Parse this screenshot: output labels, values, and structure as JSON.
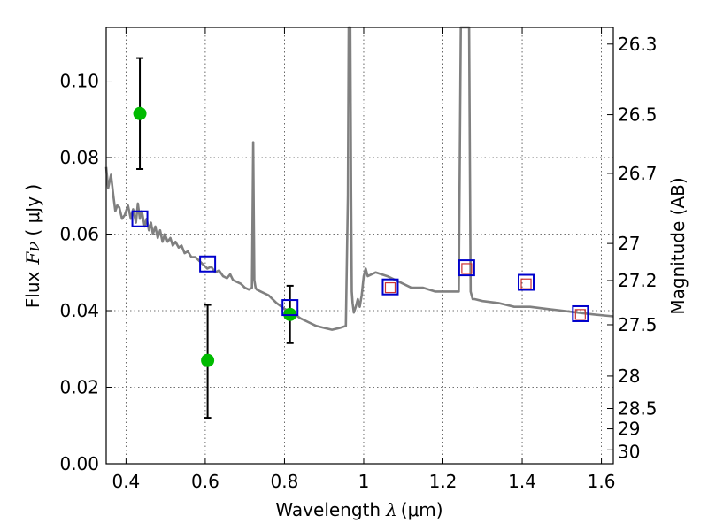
{
  "chart_data": {
    "type": "scatter",
    "title": "",
    "xlabel": {
      "text": "Wavelength",
      "symbol": "λ",
      "unit": "(μm)"
    },
    "ylabel": {
      "text": "Flux",
      "symbol": "Fν",
      "unit": "( μJy )"
    },
    "y2label": "Magnitude (AB)",
    "xlim": [
      0.35,
      1.63
    ],
    "ylim": [
      0.0,
      0.114
    ],
    "grid": true,
    "x_ticks": [
      {
        "value": 0.4,
        "label": "0.4"
      },
      {
        "value": 0.6,
        "label": "0.6"
      },
      {
        "value": 0.8,
        "label": "0.8"
      },
      {
        "value": 1.0,
        "label": "1"
      },
      {
        "value": 1.2,
        "label": "1.2"
      },
      {
        "value": 1.4,
        "label": "1.4"
      },
      {
        "value": 1.6,
        "label": "1.6"
      }
    ],
    "y_ticks": [
      {
        "value": 0.0,
        "label": "0.00"
      },
      {
        "value": 0.02,
        "label": "0.02"
      },
      {
        "value": 0.04,
        "label": "0.04"
      },
      {
        "value": 0.06,
        "label": "0.06"
      },
      {
        "value": 0.08,
        "label": "0.08"
      },
      {
        "value": 0.1,
        "label": "0.10"
      }
    ],
    "y2_ticks": [
      {
        "value": 26.3,
        "label": "26.3"
      },
      {
        "value": 26.5,
        "label": "26.5"
      },
      {
        "value": 26.7,
        "label": "26.7"
      },
      {
        "value": 27.0,
        "label": "27"
      },
      {
        "value": 27.2,
        "label": "27.2"
      },
      {
        "value": 27.5,
        "label": "27.5"
      },
      {
        "value": 28.0,
        "label": "28"
      },
      {
        "value": 28.5,
        "label": "28.5"
      },
      {
        "value": 29.0,
        "label": "29"
      },
      {
        "value": 30.0,
        "label": "30"
      }
    ],
    "colors": {
      "spectrum": "#808080",
      "observed": "#00bb00",
      "errorbar": "#000000",
      "model_box": "#0000cc",
      "model_inner": "#cc3333",
      "grid": "#444444"
    },
    "spectrum": {
      "x": [
        0.35,
        0.355,
        0.362,
        0.368,
        0.373,
        0.378,
        0.383,
        0.39,
        0.397,
        0.405,
        0.412,
        0.418,
        0.425,
        0.43,
        0.435,
        0.44,
        0.447,
        0.452,
        0.458,
        0.463,
        0.468,
        0.474,
        0.48,
        0.486,
        0.492,
        0.498,
        0.505,
        0.512,
        0.518,
        0.525,
        0.533,
        0.54,
        0.548,
        0.556,
        0.565,
        0.575,
        0.585,
        0.595,
        0.605,
        0.615,
        0.625,
        0.635,
        0.645,
        0.655,
        0.663,
        0.67,
        0.68,
        0.69,
        0.7,
        0.71,
        0.718,
        0.721,
        0.724,
        0.727,
        0.73,
        0.74,
        0.76,
        0.78,
        0.8,
        0.82,
        0.84,
        0.86,
        0.88,
        0.9,
        0.92,
        0.94,
        0.955,
        0.96,
        0.962,
        0.964,
        0.966,
        0.968,
        0.97,
        0.972,
        0.975,
        0.98,
        0.985,
        0.99,
        0.995,
        1.0,
        1.005,
        1.01,
        1.03,
        1.06,
        1.08,
        1.1,
        1.12,
        1.15,
        1.18,
        1.21,
        1.24,
        1.245,
        1.248,
        1.252,
        1.258,
        1.262,
        1.266,
        1.27,
        1.275,
        1.28,
        1.3,
        1.34,
        1.38,
        1.42,
        1.46,
        1.5,
        1.54,
        1.58,
        1.63
      ],
      "y": [
        0.0775,
        0.072,
        0.0755,
        0.07,
        0.066,
        0.0675,
        0.067,
        0.064,
        0.065,
        0.0675,
        0.064,
        0.0665,
        0.063,
        0.068,
        0.064,
        0.066,
        0.062,
        0.064,
        0.061,
        0.063,
        0.06,
        0.062,
        0.059,
        0.061,
        0.058,
        0.06,
        0.058,
        0.059,
        0.057,
        0.058,
        0.0565,
        0.057,
        0.055,
        0.0555,
        0.054,
        0.054,
        0.053,
        0.052,
        0.051,
        0.0515,
        0.05,
        0.0505,
        0.049,
        0.0485,
        0.0495,
        0.048,
        0.0475,
        0.047,
        0.046,
        0.0455,
        0.046,
        0.084,
        0.048,
        0.046,
        0.0455,
        0.045,
        0.044,
        0.042,
        0.0405,
        0.0395,
        0.038,
        0.037,
        0.036,
        0.0355,
        0.035,
        0.0355,
        0.036,
        0.07,
        0.114,
        0.114,
        0.114,
        0.072,
        0.045,
        0.042,
        0.0395,
        0.041,
        0.043,
        0.041,
        0.044,
        0.049,
        0.051,
        0.049,
        0.05,
        0.049,
        0.048,
        0.047,
        0.046,
        0.046,
        0.045,
        0.045,
        0.045,
        0.114,
        0.114,
        0.114,
        0.114,
        0.114,
        0.114,
        0.045,
        0.043,
        0.043,
        0.0425,
        0.042,
        0.041,
        0.041,
        0.0405,
        0.04,
        0.0395,
        0.039,
        0.0385
      ]
    },
    "observed": [
      {
        "x": 0.435,
        "y": 0.0915,
        "yerr": [
          0.077,
          0.106
        ]
      },
      {
        "x": 0.606,
        "y": 0.027,
        "yerr": [
          0.012,
          0.0415
        ]
      },
      {
        "x": 0.814,
        "y": 0.039,
        "yerr": [
          0.0315,
          0.0465
        ]
      }
    ],
    "model_boxes": [
      {
        "x": 0.435,
        "y": 0.064
      },
      {
        "x": 0.606,
        "y": 0.0522
      },
      {
        "x": 0.814,
        "y": 0.0408
      },
      {
        "x": 1.067,
        "y": 0.0462
      },
      {
        "x": 1.26,
        "y": 0.0512
      },
      {
        "x": 1.41,
        "y": 0.0474
      },
      {
        "x": 1.547,
        "y": 0.0392
      }
    ],
    "model_inner": [
      {
        "x": 1.067,
        "y": 0.046
      },
      {
        "x": 1.26,
        "y": 0.051
      },
      {
        "x": 1.41,
        "y": 0.047
      },
      {
        "x": 1.547,
        "y": 0.039
      }
    ]
  }
}
